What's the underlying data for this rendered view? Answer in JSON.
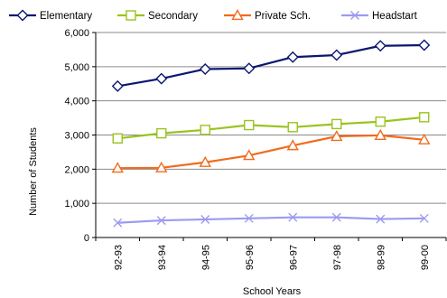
{
  "chart_data": {
    "type": "line",
    "xlabel": "School Years",
    "ylabel": "Number of Students",
    "ylim": [
      0,
      6000
    ],
    "yticks": [
      "0",
      "1,000",
      "2,000",
      "3,000",
      "4,000",
      "5,000",
      "6,000"
    ],
    "ytick_values": [
      0,
      1000,
      2000,
      3000,
      4000,
      5000,
      6000
    ],
    "categories": [
      "92-93",
      "93-94",
      "94-95",
      "95-96",
      "96-97",
      "97-98",
      "98-99",
      "99-00"
    ],
    "grid": "horizontal",
    "legend_position": "top",
    "series": [
      {
        "name": "Elementary",
        "color": "#0b1670",
        "marker": "diamond",
        "values": [
          4430,
          4650,
          4930,
          4950,
          5280,
          5340,
          5610,
          5630
        ]
      },
      {
        "name": "Secondary",
        "color": "#99c31f",
        "marker": "square",
        "values": [
          2900,
          3050,
          3150,
          3290,
          3230,
          3320,
          3390,
          3520
        ]
      },
      {
        "name": "Private Sch.",
        "color": "#f26b1d",
        "marker": "triangle",
        "values": [
          2030,
          2040,
          2200,
          2400,
          2690,
          2960,
          2990,
          2860
        ]
      },
      {
        "name": "Headstart",
        "color": "#9b9bf0",
        "marker": "x",
        "values": [
          430,
          500,
          530,
          560,
          590,
          590,
          540,
          560
        ]
      }
    ]
  }
}
